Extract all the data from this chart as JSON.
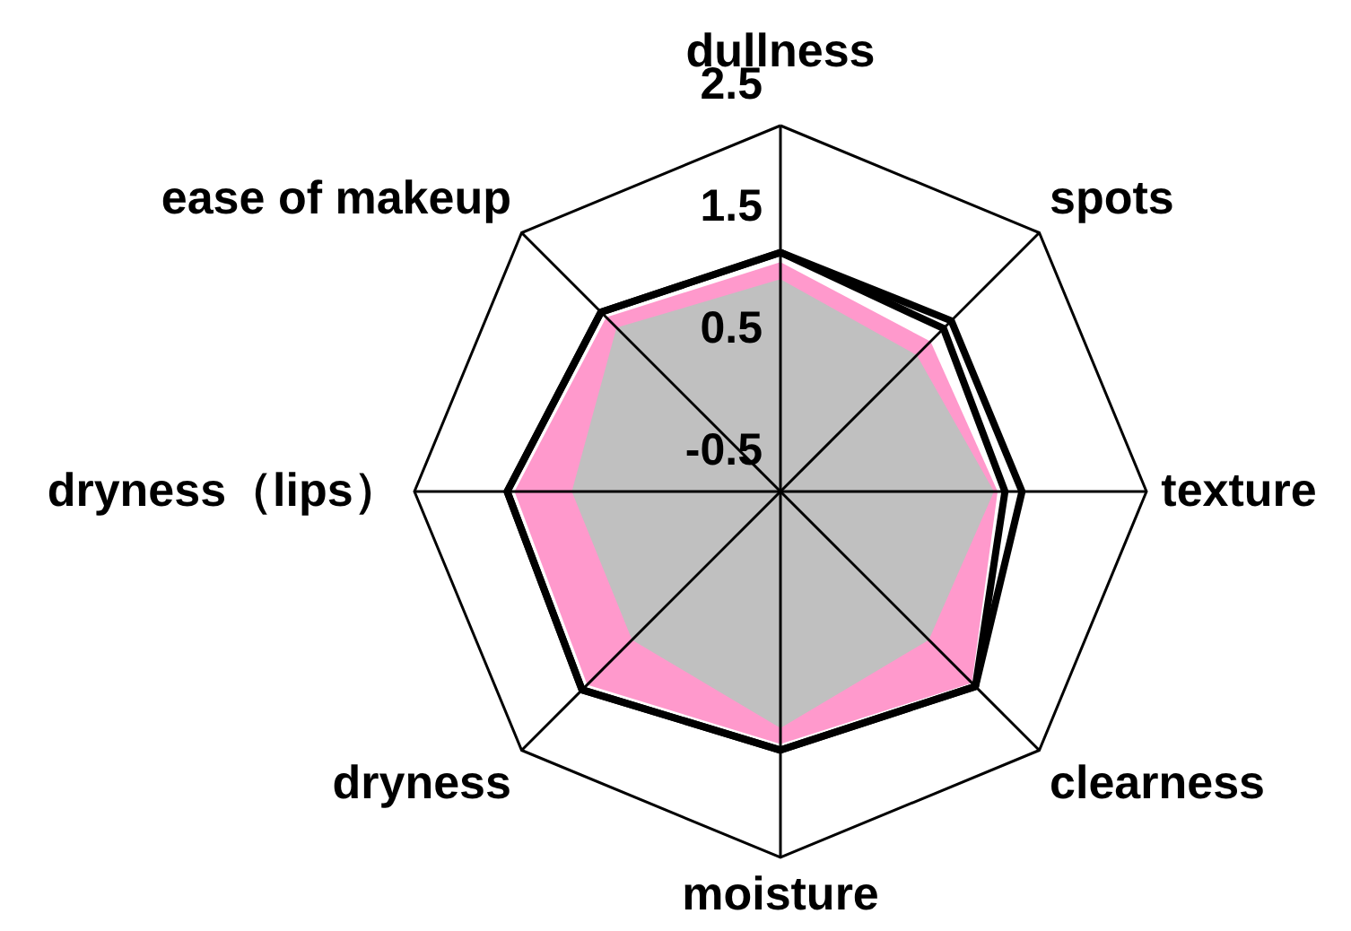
{
  "chart_data": {
    "type": "radar",
    "categories": [
      "dullness",
      "spots",
      "texture",
      "clearness",
      "moisture",
      "dryness",
      "dryness（lips）",
      "ease of makeup"
    ],
    "ylim": [
      -0.5,
      2.5
    ],
    "yticks": [
      -0.5,
      0.5,
      1.5,
      2.5
    ],
    "series": [
      {
        "type": "area",
        "color": "#ff99cc",
        "values": [
          1.38,
          1.24,
          1.28,
          1.72,
          1.57,
          1.74,
          1.68,
          1.52
        ]
      },
      {
        "type": "area",
        "color": "#c0c0c0",
        "values": [
          1.24,
          1.08,
          1.25,
          1.22,
          1.44,
          1.22,
          1.21,
          1.4
        ]
      },
      {
        "color": "#000000",
        "values": [
          1.46,
          1.48,
          1.48,
          1.76,
          1.62,
          1.8,
          1.74,
          1.58
        ]
      },
      {
        "color": "#000000",
        "values": [
          1.46,
          1.39,
          1.34,
          1.76,
          1.62,
          1.8,
          1.74,
          1.58
        ]
      }
    ]
  }
}
